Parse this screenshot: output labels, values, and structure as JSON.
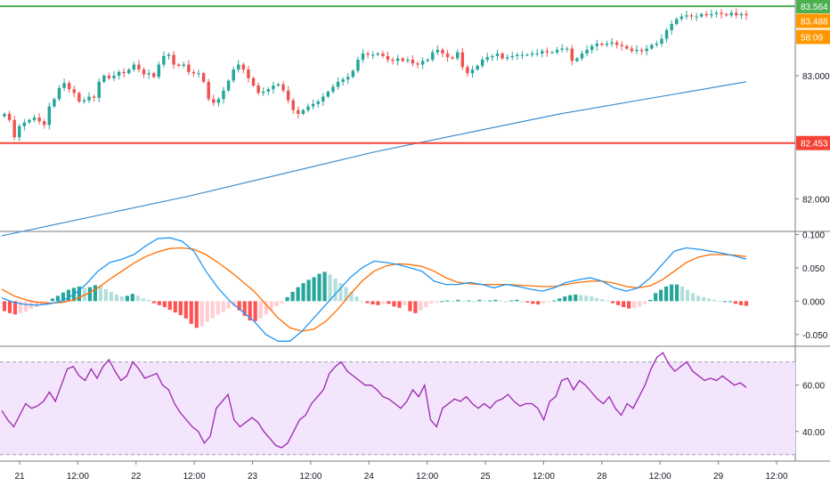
{
  "chart_data": [
    {
      "type": "candlestick",
      "panel": "price",
      "yaxis_ticks": [
        "83.000",
        "82.000"
      ],
      "ylim": [
        81.75,
        83.6
      ],
      "horizontal_lines": [
        {
          "label": "83.564",
          "value": 83.564,
          "color": "#4caf50"
        },
        {
          "label": "82.453",
          "value": 82.453,
          "color": "#f44336"
        }
      ],
      "price_badges": [
        {
          "label": "83.488",
          "value": 83.488,
          "color": "#ff9800"
        },
        {
          "label": "58:09",
          "color": "#ff9800"
        }
      ],
      "closes": [
        82.69,
        82.64,
        82.5,
        82.59,
        82.62,
        82.64,
        82.66,
        82.63,
        82.6,
        82.75,
        82.81,
        82.9,
        82.94,
        82.89,
        82.86,
        82.79,
        82.8,
        82.83,
        82.82,
        82.95,
        83.0,
        82.98,
        83.0,
        83.03,
        83.02,
        83.05,
        83.09,
        83.05,
        83.01,
        83.02,
        82.99,
        83.09,
        83.16,
        83.17,
        83.09,
        83.08,
        83.09,
        83.03,
        83.02,
        83.02,
        82.95,
        82.81,
        82.78,
        82.81,
        82.88,
        82.96,
        83.05,
        83.09,
        83.05,
        82.98,
        82.92,
        82.86,
        82.87,
        82.89,
        82.92,
        82.93,
        82.88,
        82.8,
        82.72,
        82.69,
        82.72,
        82.75,
        82.77,
        82.79,
        82.83,
        82.87,
        82.91,
        82.95,
        82.97,
        82.99,
        83.04,
        83.13,
        83.18,
        83.17,
        83.17,
        83.18,
        83.16,
        83.13,
        83.12,
        83.14,
        83.12,
        83.13,
        83.1,
        83.09,
        83.12,
        83.13,
        83.19,
        83.21,
        83.18,
        83.15,
        83.14,
        83.19,
        83.07,
        83.02,
        83.05,
        83.08,
        83.13,
        83.15,
        83.16,
        83.18,
        83.14,
        83.15,
        83.16,
        83.17,
        83.17,
        83.17,
        83.18,
        83.18,
        83.2,
        83.19,
        83.19,
        83.21,
        83.22,
        83.22,
        83.12,
        83.14,
        83.18,
        83.21,
        83.24,
        83.26,
        83.25,
        83.26,
        83.27,
        83.25,
        83.24,
        83.22,
        83.2,
        83.21,
        83.2,
        83.22,
        83.25,
        83.26,
        83.3,
        83.37,
        83.42,
        83.46,
        83.48,
        83.49,
        83.48,
        83.48,
        83.5,
        83.49,
        83.5,
        83.51,
        83.5,
        83.49,
        83.51,
        83.49,
        83.5,
        83.49
      ],
      "sma": {
        "color": "#3d8fd0",
        "values": [
          81.7,
          82.02,
          82.38,
          82.69,
          82.95
        ]
      },
      "xaxis_ticks": [
        "21",
        "12:00",
        "22",
        "12:00",
        "23",
        "12:00",
        "24",
        "12:00",
        "25",
        "12:00",
        "28",
        "12:00",
        "29",
        "12:00"
      ]
    },
    {
      "type": "macd",
      "panel": "macd",
      "yaxis_ticks": [
        "0.100",
        "0.050",
        "0.000",
        "-0.050"
      ],
      "ylim": [
        -0.065,
        0.102
      ],
      "histogram": [
        -0.015,
        -0.018,
        -0.02,
        -0.018,
        -0.016,
        -0.012,
        -0.009,
        -0.006,
        -0.002,
        0.004,
        0.008,
        0.013,
        0.017,
        0.02,
        0.022,
        0.02,
        0.021,
        0.024,
        0.023,
        0.018,
        0.014,
        0.01,
        0.007,
        0.008,
        0.011,
        0.008,
        0.004,
        0.002,
        -0.003,
        -0.006,
        -0.009,
        -0.013,
        -0.017,
        -0.021,
        -0.026,
        -0.034,
        -0.04,
        -0.038,
        -0.031,
        -0.026,
        -0.02,
        -0.016,
        -0.011,
        -0.008,
        -0.014,
        -0.022,
        -0.029,
        -0.03,
        -0.026,
        -0.02,
        -0.014,
        -0.008,
        -0.003,
        0.006,
        0.014,
        0.021,
        0.027,
        0.032,
        0.036,
        0.041,
        0.044,
        0.04,
        0.034,
        0.027,
        0.021,
        0.014,
        0.007,
        0.0,
        -0.003,
        -0.005,
        -0.006,
        -0.004,
        -0.004,
        -0.008,
        -0.01,
        -0.006,
        -0.015,
        -0.018,
        -0.014,
        -0.009,
        -0.003,
        -0.002,
        0.0,
        0.001,
        0.0,
        0.002,
        0.0,
        0.001,
        0.0,
        0.002,
        0.001,
        0.001,
        0.002,
        0.001,
        0.0,
        0.001,
        0.002,
        0.0,
        -0.002,
        -0.004,
        -0.005,
        -0.003,
        -0.001,
        0.001,
        0.004,
        0.007,
        0.009,
        0.01,
        0.009,
        0.008,
        0.007,
        0.005,
        0.003,
        0.001,
        -0.003,
        -0.006,
        -0.009,
        -0.011,
        -0.01,
        -0.008,
        -0.004,
        0.002,
        0.012,
        0.017,
        0.022,
        0.025,
        0.025,
        0.022,
        0.017,
        0.012,
        0.008,
        0.006,
        0.004,
        0.002,
        0.0,
        0.0,
        0.0,
        -0.004,
        -0.006,
        -0.007
      ],
      "macd_line": {
        "color": "#2196f3",
        "values": [
          0.005,
          -0.002,
          -0.005,
          -0.006,
          -0.004,
          0.0,
          0.01,
          0.025,
          0.045,
          0.058,
          0.063,
          0.07,
          0.083,
          0.094,
          0.095,
          0.09,
          0.075,
          0.045,
          0.02,
          0.0,
          -0.015,
          -0.03,
          -0.05,
          -0.06,
          -0.06,
          -0.045,
          -0.025,
          -0.005,
          0.015,
          0.035,
          0.05,
          0.06,
          0.058,
          0.055,
          0.05,
          0.045,
          0.03,
          0.025,
          0.025,
          0.028,
          0.025,
          0.02,
          0.025,
          0.022,
          0.018,
          0.015,
          0.02,
          0.028,
          0.032,
          0.035,
          0.03,
          0.02,
          0.015,
          0.02,
          0.035,
          0.055,
          0.075,
          0.08,
          0.078,
          0.075,
          0.072,
          0.068,
          0.063
        ]
      },
      "signal_line": {
        "color": "#ff6d00",
        "values": [
          0.018,
          0.008,
          0.002,
          -0.002,
          -0.003,
          -0.002,
          0.002,
          0.01,
          0.02,
          0.033,
          0.045,
          0.057,
          0.067,
          0.074,
          0.079,
          0.08,
          0.078,
          0.07,
          0.058,
          0.045,
          0.03,
          0.015,
          -0.005,
          -0.025,
          -0.04,
          -0.045,
          -0.042,
          -0.03,
          -0.012,
          0.01,
          0.03,
          0.045,
          0.053,
          0.056,
          0.055,
          0.052,
          0.045,
          0.035,
          0.028,
          0.026,
          0.025,
          0.025,
          0.025,
          0.024,
          0.023,
          0.022,
          0.022,
          0.025,
          0.028,
          0.03,
          0.03,
          0.027,
          0.022,
          0.02,
          0.023,
          0.032,
          0.045,
          0.058,
          0.066,
          0.07,
          0.07,
          0.069,
          0.067
        ]
      }
    },
    {
      "type": "rsi",
      "panel": "rsi",
      "yaxis_ticks": [
        "60.00",
        "40.00"
      ],
      "ylim": [
        28,
        76
      ],
      "bands": [
        30,
        70
      ],
      "line": {
        "color": "#9c27b0",
        "values": [
          49,
          45,
          42,
          47,
          52,
          50,
          51,
          53,
          57,
          53,
          60,
          67,
          68,
          64,
          62,
          67,
          63,
          68,
          71,
          66,
          62,
          64,
          70,
          67,
          63,
          64,
          65,
          60,
          58,
          52,
          48,
          45,
          42,
          40,
          35,
          38,
          50,
          53,
          56,
          45,
          42,
          44,
          46,
          44,
          40,
          37,
          34,
          33,
          35,
          40,
          45,
          47,
          52,
          55,
          58,
          65,
          68,
          70,
          66,
          64,
          62,
          60,
          60,
          58,
          55,
          54,
          52,
          50,
          53,
          58,
          55,
          60,
          45,
          42,
          50,
          52,
          54,
          53,
          55,
          52,
          50,
          52,
          50,
          53,
          54,
          56,
          53,
          51,
          52,
          52,
          50,
          45,
          53,
          55,
          62,
          63,
          58,
          62,
          60,
          57,
          54,
          52,
          55,
          50,
          47,
          52,
          50,
          55,
          60,
          67,
          72,
          74,
          69,
          66,
          68,
          70,
          66,
          64,
          62,
          63,
          62,
          64,
          62,
          60,
          61,
          59
        ]
      },
      "xaxis_ticks": [
        "21",
        "12:00",
        "22",
        "12:00",
        "23",
        "12:00",
        "24",
        "12:00",
        "25",
        "12:00",
        "28",
        "12:00",
        "29",
        "12:00"
      ]
    }
  ]
}
